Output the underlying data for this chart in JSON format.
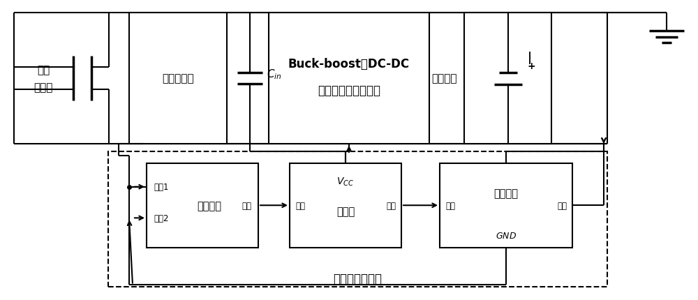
{
  "figsize": [
    10.0,
    4.31
  ],
  "dpi": 100,
  "bg": "#ffffff",
  "lw": 1.5,
  "thick_lw": 2.5,
  "rectifier_label": "全桥整流器",
  "buckboost_line1": "Buck-boost型DC-DC",
  "buckboost_line2": "开关变换器的功率级",
  "storage_label": "储能器件",
  "startup_label": "启动电路",
  "osc_label": "振荡器",
  "ovp_label": "过压保护",
  "controller_label": "开关信号控制器",
  "piezo_label1": "压电",
  "piezo_label2": "转换器",
  "in1_label": "输入1",
  "in2_label": "输入2",
  "out_label": "输出",
  "in_label": "输入",
  "cin_label": "$C_{in}$",
  "vcc_label": "$V_{CC}$",
  "gnd_label": "$GND$"
}
